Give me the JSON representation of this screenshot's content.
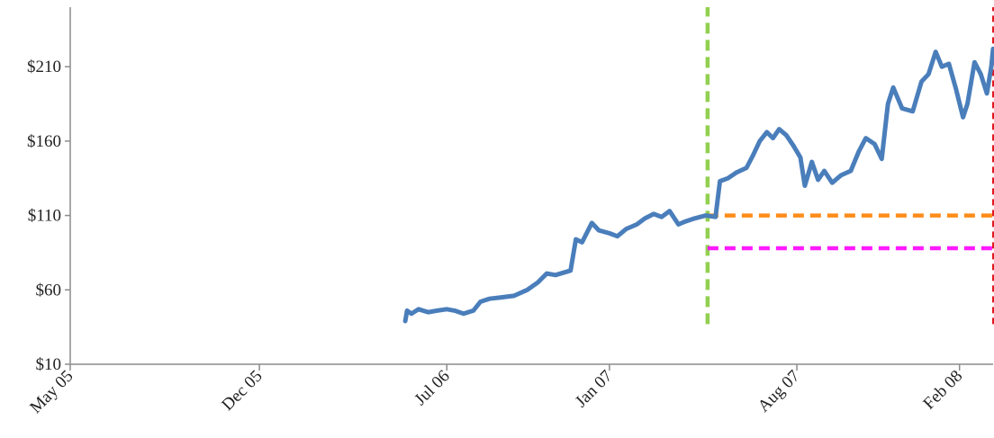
{
  "chart_data": {
    "type": "line",
    "title": "",
    "xlabel": "",
    "ylabel": "",
    "grid": false,
    "legend": "none",
    "ylim": [
      10,
      250
    ],
    "xlim": [
      "2005-05-01",
      "2008-03-10"
    ],
    "y_ticks": [
      10,
      60,
      110,
      160,
      210
    ],
    "y_tick_labels": [
      "$10",
      "$60",
      "$110",
      "$160",
      "$210"
    ],
    "x_ticks": [
      "2005-05-01",
      "2005-12-01",
      "2006-07-01",
      "2007-01-01",
      "2007-08-01",
      "2008-02-01"
    ],
    "x_tick_labels": [
      "May 05",
      "Dec 05",
      "Jul 06",
      "Jan 07",
      "Aug 07",
      "Feb 08"
    ],
    "series": [
      {
        "color": "#4a7ebb",
        "points": [
          [
            "2006-05-15",
            39
          ],
          [
            "2006-05-17",
            46
          ],
          [
            "2006-05-22",
            44
          ],
          [
            "2006-05-30",
            47
          ],
          [
            "2006-06-10",
            45
          ],
          [
            "2006-06-20",
            46
          ],
          [
            "2006-07-01",
            47
          ],
          [
            "2006-07-10",
            46
          ],
          [
            "2006-07-20",
            44
          ],
          [
            "2006-07-31",
            46
          ],
          [
            "2006-08-08",
            52
          ],
          [
            "2006-08-18",
            54
          ],
          [
            "2006-09-01",
            55
          ],
          [
            "2006-09-15",
            56
          ],
          [
            "2006-09-30",
            60
          ],
          [
            "2006-10-12",
            65
          ],
          [
            "2006-10-22",
            71
          ],
          [
            "2006-11-01",
            70
          ],
          [
            "2006-11-18",
            73
          ],
          [
            "2006-11-24",
            94
          ],
          [
            "2006-12-01",
            92
          ],
          [
            "2006-12-12",
            105
          ],
          [
            "2006-12-20",
            100
          ],
          [
            "2007-01-01",
            98
          ],
          [
            "2007-01-10",
            96
          ],
          [
            "2007-01-20",
            101
          ],
          [
            "2007-02-01",
            104
          ],
          [
            "2007-02-10",
            108
          ],
          [
            "2007-02-20",
            111
          ],
          [
            "2007-03-01",
            109
          ],
          [
            "2007-03-10",
            113
          ],
          [
            "2007-03-20",
            104
          ],
          [
            "2007-03-28",
            106
          ],
          [
            "2007-04-07",
            108
          ],
          [
            "2007-04-20",
            110
          ],
          [
            "2007-05-01",
            109
          ],
          [
            "2007-05-06",
            133
          ],
          [
            "2007-05-15",
            135
          ],
          [
            "2007-05-25",
            139
          ],
          [
            "2007-06-05",
            142
          ],
          [
            "2007-06-12",
            150
          ],
          [
            "2007-06-20",
            160
          ],
          [
            "2007-06-28",
            166
          ],
          [
            "2007-07-05",
            162
          ],
          [
            "2007-07-12",
            168
          ],
          [
            "2007-07-20",
            164
          ],
          [
            "2007-07-28",
            157
          ],
          [
            "2007-08-05",
            149
          ],
          [
            "2007-08-10",
            130
          ],
          [
            "2007-08-18",
            146
          ],
          [
            "2007-08-25",
            134
          ],
          [
            "2007-09-01",
            140
          ],
          [
            "2007-09-10",
            132
          ],
          [
            "2007-09-20",
            137
          ],
          [
            "2007-10-01",
            140
          ],
          [
            "2007-10-10",
            153
          ],
          [
            "2007-10-18",
            162
          ],
          [
            "2007-10-28",
            158
          ],
          [
            "2007-11-05",
            148
          ],
          [
            "2007-11-12",
            185
          ],
          [
            "2007-11-18",
            196
          ],
          [
            "2007-11-28",
            182
          ],
          [
            "2007-12-10",
            180
          ],
          [
            "2007-12-20",
            200
          ],
          [
            "2007-12-28",
            205
          ],
          [
            "2008-01-05",
            220
          ],
          [
            "2008-01-12",
            210
          ],
          [
            "2008-01-20",
            212
          ],
          [
            "2008-01-28",
            195
          ],
          [
            "2008-02-05",
            176
          ],
          [
            "2008-02-10",
            185
          ],
          [
            "2008-02-18",
            213
          ],
          [
            "2008-02-25",
            205
          ],
          [
            "2008-03-03",
            192
          ],
          [
            "2008-03-08",
            210
          ],
          [
            "2008-03-10",
            222
          ]
        ]
      }
    ],
    "reference_lines": [
      {
        "orientation": "vertical",
        "x": "2007-04-22",
        "y_from": 37,
        "y_to": 250,
        "color": "#92d050",
        "style": "dashed"
      },
      {
        "orientation": "vertical",
        "x": "2008-03-10",
        "y_from": 37,
        "y_to": 250,
        "color": "#e0181f",
        "style": "dashed"
      },
      {
        "orientation": "horizontal",
        "y": 110,
        "x_from": "2007-04-22",
        "x_to": "2008-03-10",
        "color": "#ff8c1a",
        "style": "dashed"
      },
      {
        "orientation": "horizontal",
        "y": 88,
        "x_from": "2007-04-22",
        "x_to": "2008-03-10",
        "color": "#ff1aff",
        "style": "dashed"
      }
    ]
  }
}
